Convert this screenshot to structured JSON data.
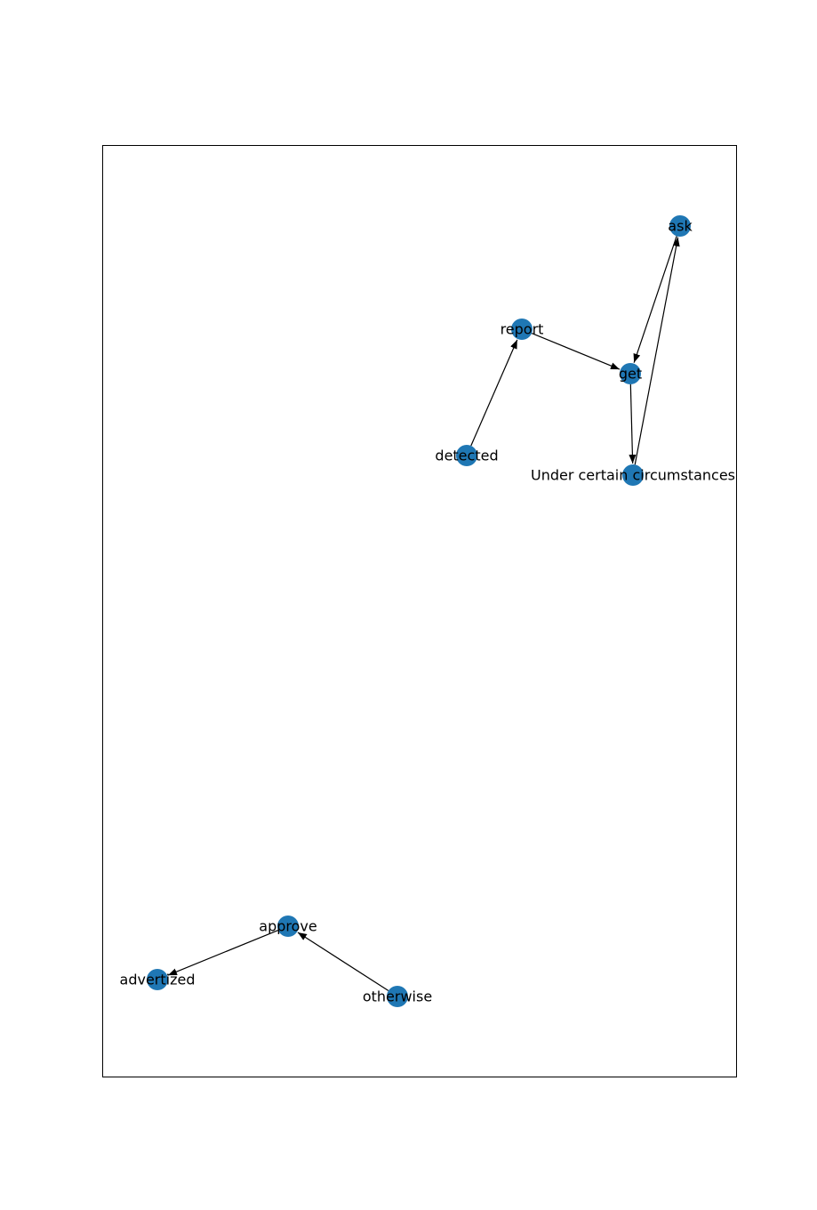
{
  "graph": {
    "node_color": "#1f77b4",
    "edge_color": "#000000",
    "frame_color": "#000000",
    "nodes": [
      {
        "id": "ask",
        "label": "ask"
      },
      {
        "id": "report",
        "label": "report"
      },
      {
        "id": "get",
        "label": "get"
      },
      {
        "id": "detected",
        "label": "detected"
      },
      {
        "id": "under",
        "label": "Under certain circumstances"
      },
      {
        "id": "approve",
        "label": "approve"
      },
      {
        "id": "advertized",
        "label": "advertized"
      },
      {
        "id": "otherwise",
        "label": "otherwise"
      }
    ],
    "edges": [
      {
        "source": "detected",
        "target": "report"
      },
      {
        "source": "report",
        "target": "get"
      },
      {
        "source": "ask",
        "target": "get"
      },
      {
        "source": "get",
        "target": "under"
      },
      {
        "source": "under",
        "target": "ask"
      },
      {
        "source": "approve",
        "target": "advertized"
      },
      {
        "source": "otherwise",
        "target": "approve"
      }
    ]
  }
}
